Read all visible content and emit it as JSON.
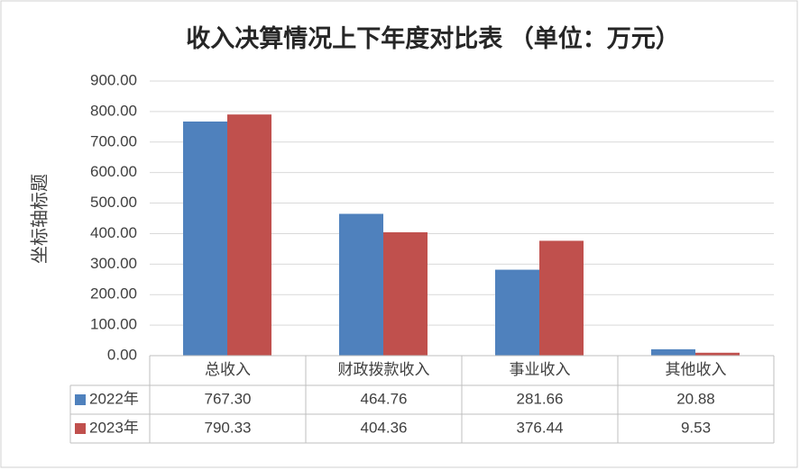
{
  "chart_data": {
    "type": "bar",
    "title": "收入决算情况上下年度对比表 （单位：万元）",
    "y_label": "坐标轴标题",
    "categories": [
      "总收入",
      "财政拨款收入",
      "事业收入",
      "其他收入"
    ],
    "series": [
      {
        "name": "2022年",
        "color": "#4f81bd",
        "values": [
          767.3,
          464.76,
          281.66,
          20.88
        ],
        "value_labels": [
          "767.30",
          "464.76",
          "281.66",
          "20.88"
        ]
      },
      {
        "name": "2023年",
        "color": "#c0504d",
        "values": [
          790.33,
          404.36,
          376.44,
          9.53
        ],
        "value_labels": [
          "790.33",
          "404.36",
          "376.44",
          "9.53"
        ]
      }
    ],
    "ylim": [
      0,
      900
    ],
    "yticks": [
      {
        "value": 0,
        "label": "0.00"
      },
      {
        "value": 100,
        "label": "100.00"
      },
      {
        "value": 200,
        "label": "200.00"
      },
      {
        "value": 300,
        "label": "300.00"
      },
      {
        "value": 400,
        "label": "400.00"
      },
      {
        "value": 500,
        "label": "500.00"
      },
      {
        "value": 600,
        "label": "600.00"
      },
      {
        "value": 700,
        "label": "700.00"
      },
      {
        "value": 800,
        "label": "800.00"
      },
      {
        "value": 900,
        "label": "900.00"
      }
    ],
    "grid": true
  }
}
